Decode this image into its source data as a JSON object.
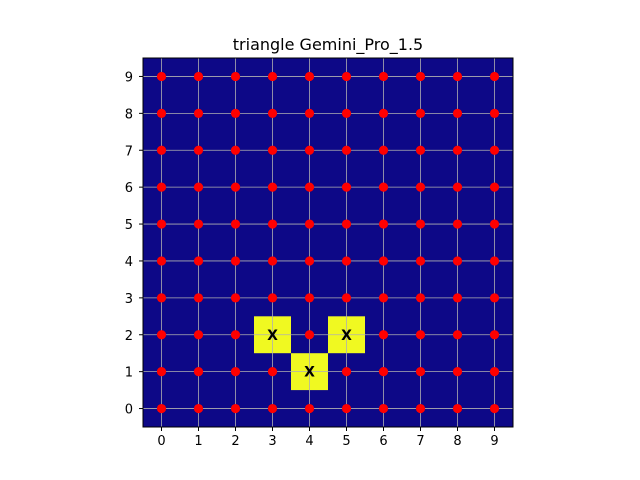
{
  "chart_data": {
    "type": "heatmap",
    "title": "triangle Gemini_Pro_1.5",
    "xlabel": "",
    "ylabel": "",
    "xlim": [
      -0.5,
      9.5
    ],
    "ylim": [
      -0.5,
      9.5
    ],
    "x_ticks": [
      "0",
      "1",
      "2",
      "3",
      "4",
      "5",
      "6",
      "7",
      "8",
      "9"
    ],
    "y_ticks": [
      "0",
      "1",
      "2",
      "3",
      "4",
      "5",
      "6",
      "7",
      "8",
      "9"
    ],
    "grid": true,
    "background_color": "#0d0887",
    "highlight_color": "#f0f921",
    "point_color": "#ff0000",
    "grid_color": "#b0b0b0",
    "points": {
      "x_range": [
        0,
        9
      ],
      "y_range": [
        0,
        9
      ]
    },
    "highlighted_cells": [
      {
        "x": 3,
        "y": 2,
        "label": "X"
      },
      {
        "x": 5,
        "y": 2,
        "label": "X"
      },
      {
        "x": 4,
        "y": 1,
        "label": "X"
      }
    ]
  }
}
